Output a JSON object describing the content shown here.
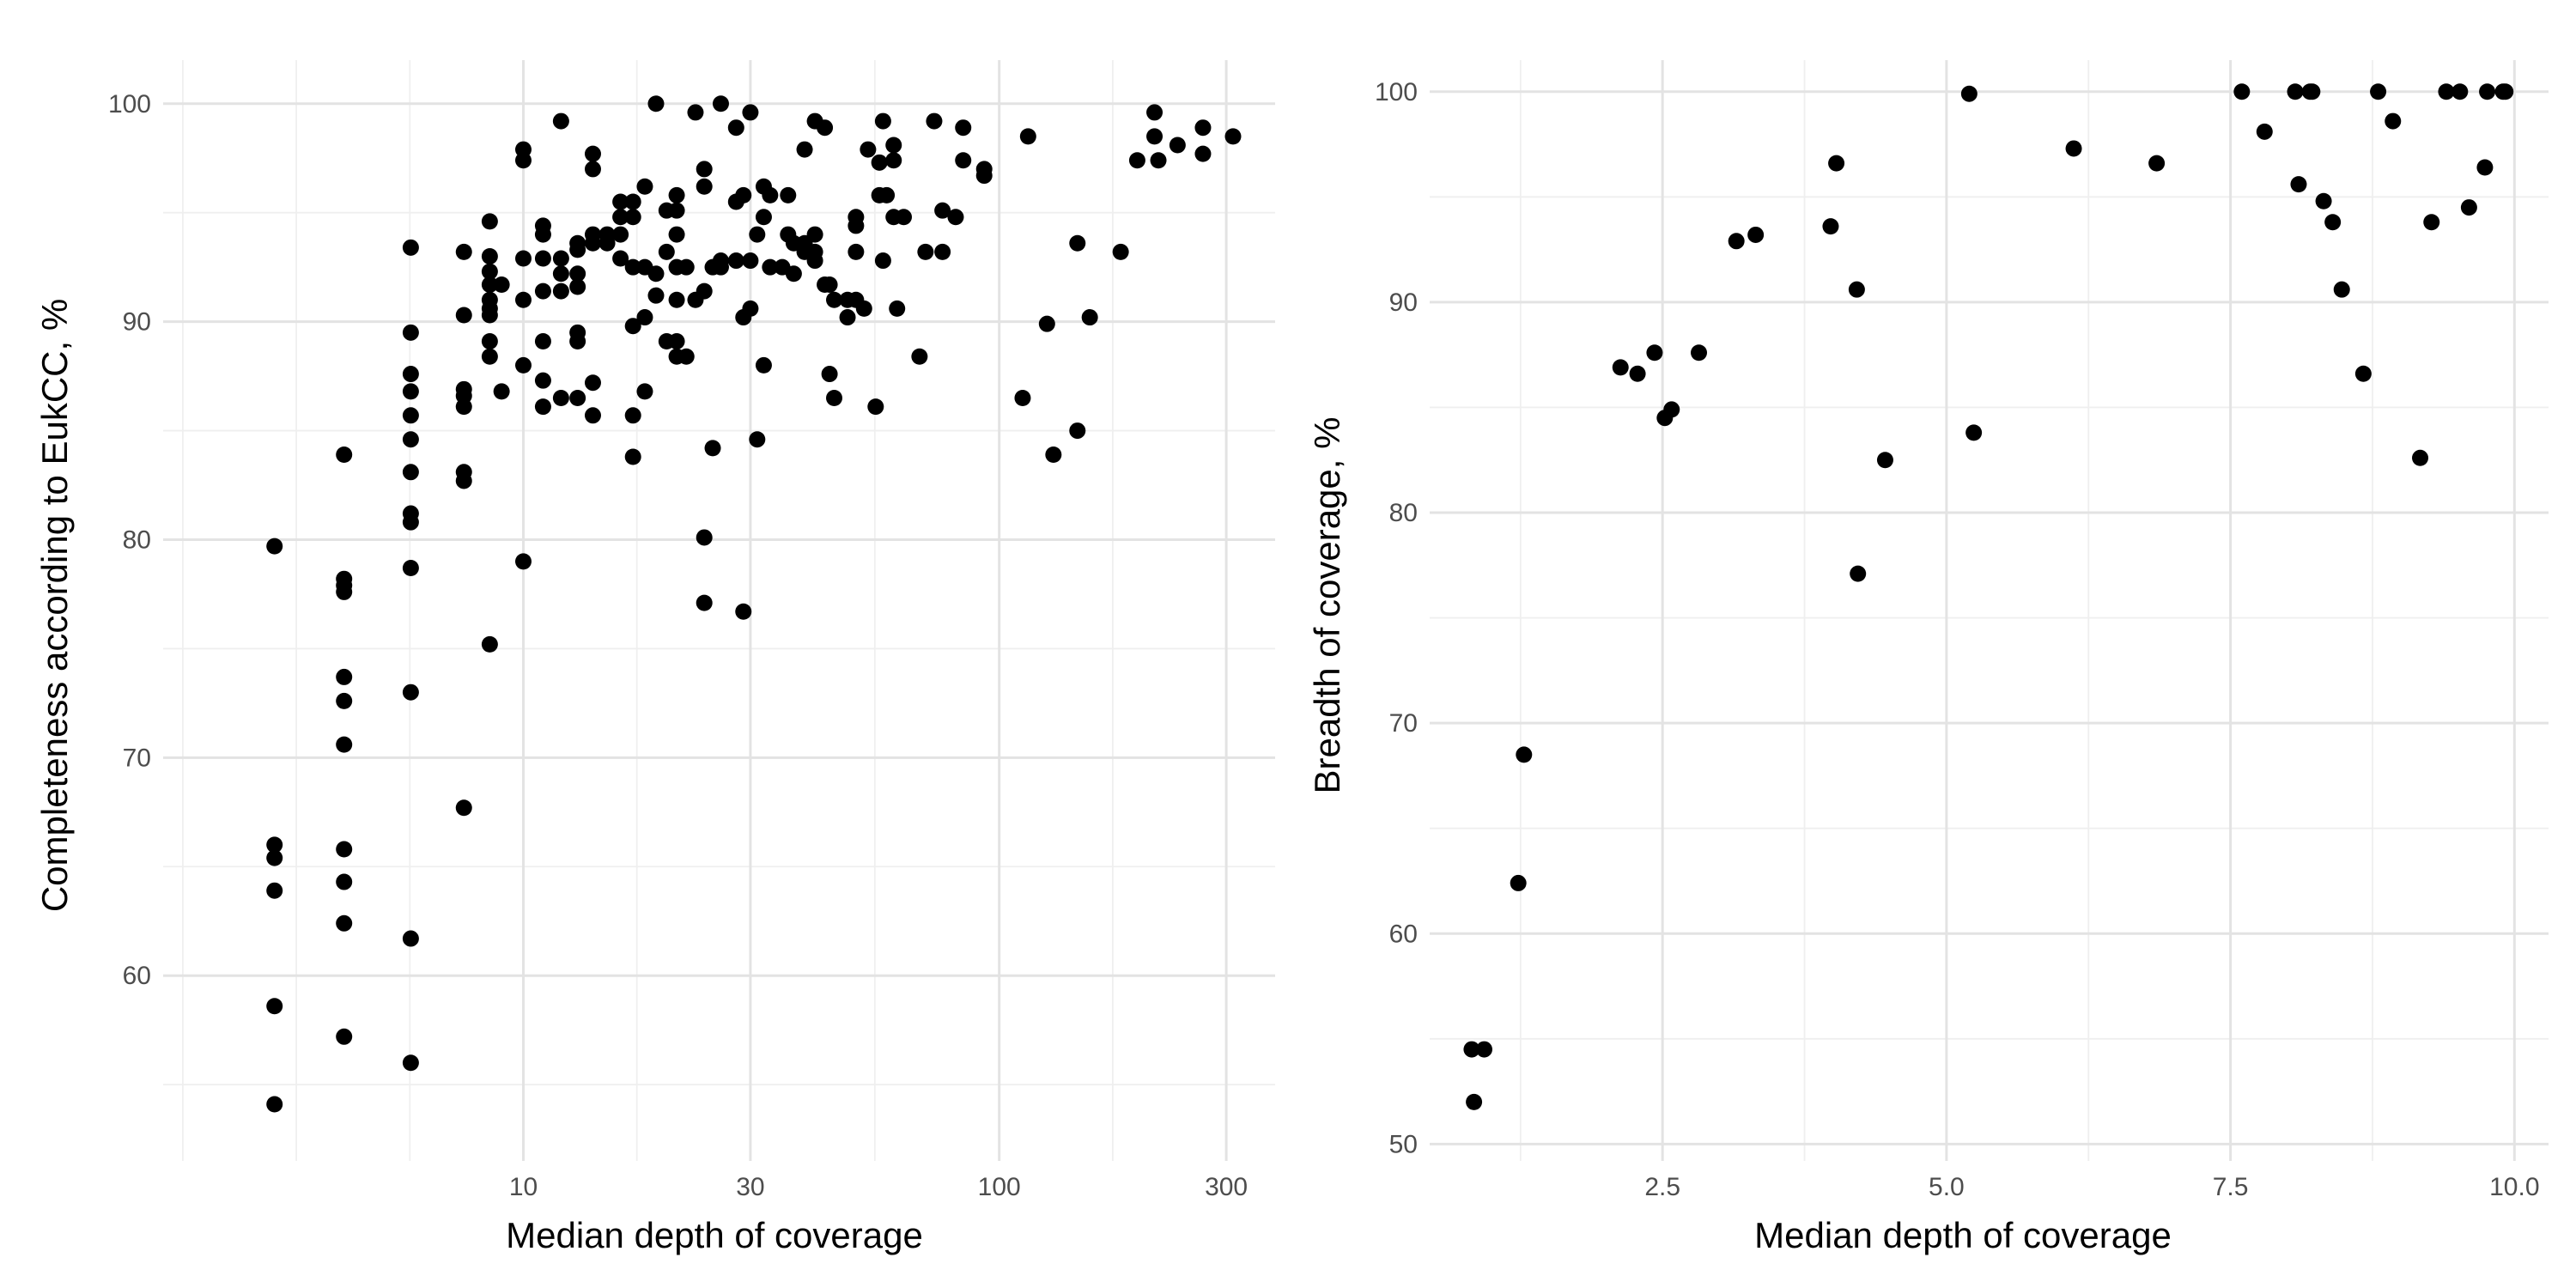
{
  "chart_data": [
    {
      "type": "scatter",
      "xlabel": "Median depth of coverage",
      "ylabel": "Completeness according to EukCC, %",
      "xscale": "log10",
      "xlim": [
        1.75,
        380
      ],
      "ylim": [
        51.5,
        102
      ],
      "xticks": [
        10,
        30,
        100,
        300
      ],
      "xtick_labels": [
        "10",
        "30",
        "100",
        "300"
      ],
      "yticks": [
        60,
        70,
        80,
        90,
        100
      ],
      "ytick_labels": [
        "60",
        "70",
        "80",
        "90",
        "100"
      ],
      "grid": true,
      "points": [
        [
          3.0,
          79.7
        ],
        [
          3.0,
          66.0
        ],
        [
          3.0,
          65.4
        ],
        [
          3.0,
          63.9
        ],
        [
          3.0,
          58.6
        ],
        [
          3.0,
          54.1
        ],
        [
          4.2,
          83.9
        ],
        [
          4.2,
          78.2
        ],
        [
          4.2,
          77.9
        ],
        [
          4.2,
          77.6
        ],
        [
          4.2,
          73.7
        ],
        [
          4.2,
          72.6
        ],
        [
          4.2,
          70.6
        ],
        [
          4.2,
          65.8
        ],
        [
          4.2,
          64.3
        ],
        [
          4.2,
          62.4
        ],
        [
          4.2,
          57.2
        ],
        [
          5.8,
          93.4
        ],
        [
          5.8,
          89.5
        ],
        [
          5.8,
          87.6
        ],
        [
          5.8,
          86.8
        ],
        [
          5.8,
          85.7
        ],
        [
          5.8,
          84.6
        ],
        [
          5.8,
          83.1
        ],
        [
          5.8,
          81.2
        ],
        [
          5.8,
          80.8
        ],
        [
          5.8,
          78.7
        ],
        [
          5.8,
          73.0
        ],
        [
          5.8,
          61.7
        ],
        [
          5.8,
          56.0
        ],
        [
          7.5,
          93.2
        ],
        [
          7.5,
          90.3
        ],
        [
          7.5,
          86.9
        ],
        [
          7.5,
          86.6
        ],
        [
          7.5,
          86.1
        ],
        [
          7.5,
          83.1
        ],
        [
          7.5,
          82.7
        ],
        [
          7.5,
          67.7
        ],
        [
          8.5,
          94.6
        ],
        [
          8.5,
          93.0
        ],
        [
          8.5,
          92.3
        ],
        [
          8.5,
          91.7
        ],
        [
          8.5,
          91.0
        ],
        [
          8.5,
          90.6
        ],
        [
          8.5,
          90.3
        ],
        [
          8.5,
          89.1
        ],
        [
          8.5,
          88.4
        ],
        [
          8.5,
          75.2
        ],
        [
          9.0,
          91.7
        ],
        [
          9.0,
          86.8
        ],
        [
          10.0,
          97.9
        ],
        [
          10.0,
          97.4
        ],
        [
          10.0,
          92.9
        ],
        [
          10.0,
          91.0
        ],
        [
          10.0,
          88.0
        ],
        [
          10.0,
          79.0
        ],
        [
          11.0,
          94.4
        ],
        [
          11.0,
          94.0
        ],
        [
          11.0,
          92.9
        ],
        [
          11.0,
          91.4
        ],
        [
          11.0,
          89.1
        ],
        [
          11.0,
          87.3
        ],
        [
          11.0,
          86.1
        ],
        [
          12.0,
          99.2
        ],
        [
          12.0,
          92.9
        ],
        [
          12.0,
          92.2
        ],
        [
          12.0,
          91.4
        ],
        [
          12.0,
          86.5
        ],
        [
          13.0,
          93.6
        ],
        [
          13.0,
          93.3
        ],
        [
          13.0,
          92.2
        ],
        [
          13.0,
          91.6
        ],
        [
          13.0,
          89.5
        ],
        [
          13.0,
          89.1
        ],
        [
          13.0,
          86.5
        ],
        [
          14.0,
          97.7
        ],
        [
          14.0,
          97.0
        ],
        [
          14.0,
          94.0
        ],
        [
          14.0,
          93.6
        ],
        [
          14.0,
          87.2
        ],
        [
          14.0,
          85.7
        ],
        [
          15.0,
          94.0
        ],
        [
          15.0,
          93.6
        ],
        [
          16.0,
          95.5
        ],
        [
          16.0,
          94.8
        ],
        [
          16.0,
          94.0
        ],
        [
          16.0,
          92.9
        ],
        [
          17.0,
          95.5
        ],
        [
          17.0,
          94.8
        ],
        [
          17.0,
          92.5
        ],
        [
          17.0,
          89.8
        ],
        [
          17.0,
          85.7
        ],
        [
          17.0,
          83.8
        ],
        [
          18.0,
          96.2
        ],
        [
          18.0,
          92.5
        ],
        [
          18.0,
          90.2
        ],
        [
          18.0,
          86.8
        ],
        [
          19.0,
          100.0
        ],
        [
          19.0,
          92.2
        ],
        [
          19.0,
          91.2
        ],
        [
          20.0,
          95.1
        ],
        [
          20.0,
          93.2
        ],
        [
          20.0,
          89.1
        ],
        [
          21.0,
          95.8
        ],
        [
          21.0,
          95.1
        ],
        [
          21.0,
          94.0
        ],
        [
          21.0,
          92.5
        ],
        [
          21.0,
          91.0
        ],
        [
          21.0,
          89.1
        ],
        [
          21.0,
          88.4
        ],
        [
          22.0,
          92.5
        ],
        [
          22.0,
          88.4
        ],
        [
          23.0,
          99.6
        ],
        [
          23.0,
          91.0
        ],
        [
          24.0,
          97.0
        ],
        [
          24.0,
          96.2
        ],
        [
          24.0,
          91.4
        ],
        [
          24.0,
          80.1
        ],
        [
          24.0,
          77.1
        ],
        [
          25.0,
          92.5
        ],
        [
          25.0,
          84.2
        ],
        [
          26.0,
          100.0
        ],
        [
          26.0,
          92.8
        ],
        [
          26.0,
          92.5
        ],
        [
          28.0,
          98.9
        ],
        [
          28.0,
          95.5
        ],
        [
          28.0,
          92.8
        ],
        [
          29.0,
          95.8
        ],
        [
          29.0,
          90.2
        ],
        [
          29.0,
          76.7
        ],
        [
          30.0,
          99.6
        ],
        [
          30.0,
          92.8
        ],
        [
          30.0,
          90.6
        ],
        [
          31.0,
          94.0
        ],
        [
          31.0,
          84.6
        ],
        [
          32.0,
          96.2
        ],
        [
          32.0,
          94.8
        ],
        [
          32.0,
          88.0
        ],
        [
          33.0,
          95.8
        ],
        [
          33.0,
          92.5
        ],
        [
          35.0,
          92.5
        ],
        [
          36.0,
          95.8
        ],
        [
          36.0,
          94.0
        ],
        [
          37.0,
          93.6
        ],
        [
          37.0,
          92.2
        ],
        [
          39.0,
          97.9
        ],
        [
          39.0,
          93.6
        ],
        [
          39.0,
          93.2
        ],
        [
          41.0,
          99.2
        ],
        [
          41.0,
          94.0
        ],
        [
          41.0,
          93.2
        ],
        [
          41.0,
          92.8
        ],
        [
          43.0,
          98.9
        ],
        [
          43.0,
          91.7
        ],
        [
          44.0,
          91.7
        ],
        [
          44.0,
          87.6
        ],
        [
          45.0,
          91.0
        ],
        [
          45.0,
          86.5
        ],
        [
          48.0,
          91.0
        ],
        [
          48.0,
          90.2
        ],
        [
          50.0,
          94.8
        ],
        [
          50.0,
          94.4
        ],
        [
          50.0,
          93.2
        ],
        [
          50.0,
          91.0
        ],
        [
          52.0,
          90.6
        ],
        [
          53.0,
          97.9
        ],
        [
          55.0,
          86.1
        ],
        [
          56.0,
          95.8
        ],
        [
          56.0,
          97.3
        ],
        [
          57.0,
          99.2
        ],
        [
          57.0,
          92.8
        ],
        [
          58.0,
          95.8
        ],
        [
          60.0,
          98.1
        ],
        [
          60.0,
          94.8
        ],
        [
          60.0,
          97.4
        ],
        [
          61.0,
          90.6
        ],
        [
          63.0,
          94.8
        ],
        [
          68.0,
          88.4
        ],
        [
          70.0,
          93.2
        ],
        [
          73.0,
          99.2
        ],
        [
          76.0,
          95.1
        ],
        [
          76.0,
          93.2
        ],
        [
          81.0,
          94.8
        ],
        [
          84.0,
          98.9
        ],
        [
          84.0,
          97.4
        ],
        [
          93.0,
          97.0
        ],
        [
          93.0,
          96.7
        ],
        [
          112.0,
          86.5
        ],
        [
          115.0,
          98.5
        ],
        [
          126.0,
          89.9
        ],
        [
          130.0,
          83.9
        ],
        [
          146.0,
          93.6
        ],
        [
          146.0,
          85.0
        ],
        [
          155.0,
          90.2
        ],
        [
          180.0,
          93.2
        ],
        [
          195.0,
          97.4
        ],
        [
          212.0,
          99.6
        ],
        [
          212.0,
          98.5
        ],
        [
          216.0,
          97.4
        ],
        [
          237.0,
          98.1
        ],
        [
          268.0,
          98.9
        ],
        [
          268.0,
          97.7
        ],
        [
          310.0,
          98.5
        ]
      ]
    },
    {
      "type": "scatter",
      "xlabel": "Median depth of coverage",
      "ylabel": "Breadth of coverage, %",
      "xlim": [
        0.45,
        10.3
      ],
      "ylim": [
        49.2,
        101.5
      ],
      "xticks": [
        2.5,
        5.0,
        7.5,
        10.0
      ],
      "xtick_labels": [
        "2.5",
        "5.0",
        "7.5",
        "10.0"
      ],
      "yticks": [
        50,
        60,
        70,
        80,
        90,
        100
      ],
      "ytick_labels": [
        "50",
        "60",
        "70",
        "80",
        "90",
        "100"
      ],
      "grid": true,
      "points": [
        [
          0.82,
          54.5
        ],
        [
          0.84,
          52.0
        ],
        [
          0.93,
          54.5
        ],
        [
          1.23,
          62.4
        ],
        [
          1.28,
          68.5
        ],
        [
          2.13,
          86.9
        ],
        [
          2.28,
          86.6
        ],
        [
          2.43,
          87.6
        ],
        [
          2.52,
          84.5
        ],
        [
          2.58,
          84.9
        ],
        [
          2.82,
          87.6
        ],
        [
          3.15,
          92.9
        ],
        [
          3.32,
          93.2
        ],
        [
          3.98,
          93.6
        ],
        [
          4.03,
          96.6
        ],
        [
          4.21,
          90.6
        ],
        [
          4.22,
          77.1
        ],
        [
          4.46,
          82.5
        ],
        [
          5.2,
          99.9
        ],
        [
          5.24,
          83.8
        ],
        [
          6.12,
          97.3
        ],
        [
          6.85,
          96.6
        ],
        [
          7.6,
          100.0
        ],
        [
          7.8,
          98.1
        ],
        [
          8.07,
          100.0
        ],
        [
          8.1,
          95.6
        ],
        [
          8.2,
          100.0
        ],
        [
          8.22,
          100.0
        ],
        [
          8.32,
          94.8
        ],
        [
          8.4,
          93.8
        ],
        [
          8.48,
          90.6
        ],
        [
          8.67,
          86.6
        ],
        [
          8.8,
          100.0
        ],
        [
          8.93,
          98.6
        ],
        [
          9.17,
          82.6
        ],
        [
          9.27,
          93.8
        ],
        [
          9.4,
          100.0
        ],
        [
          9.52,
          100.0
        ],
        [
          9.6,
          94.5
        ],
        [
          9.74,
          96.4
        ],
        [
          9.76,
          100.0
        ],
        [
          9.9,
          100.0
        ],
        [
          9.92,
          100.0
        ]
      ]
    }
  ]
}
